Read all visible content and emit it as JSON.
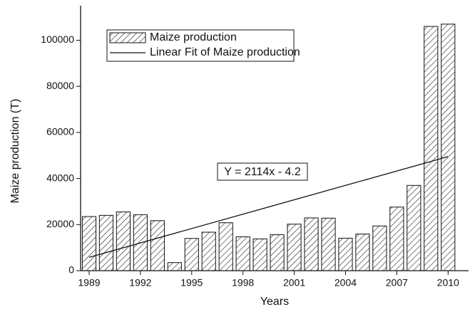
{
  "chart_data": {
    "type": "bar",
    "x_label": "Years",
    "y_label": "Maize production (T)",
    "x": [
      1989,
      1990,
      1991,
      1992,
      1993,
      1994,
      1995,
      1996,
      1997,
      1998,
      1999,
      2000,
      2001,
      2002,
      2003,
      2004,
      2005,
      2006,
      2007,
      2008,
      2009,
      2010
    ],
    "series": [
      {
        "name": "Maize production",
        "type": "bar",
        "color": "#111111",
        "values": [
          23500,
          24000,
          25500,
          24300,
          21700,
          3500,
          14000,
          16700,
          20800,
          14700,
          13800,
          15600,
          20200,
          22900,
          22800,
          14100,
          15900,
          19400,
          27600,
          37000,
          106000,
          107000
        ]
      },
      {
        "name": "Linear Fit of Maize production",
        "type": "line",
        "color": "#111111",
        "x": [
          1989,
          2010
        ],
        "values": [
          5800,
          49500
        ]
      }
    ],
    "annotation": "Y = 2114x - 4.2",
    "xlim": [
      1988.5,
      2011.2
    ],
    "ylim": [
      0,
      115000
    ],
    "xticks": [
      1989,
      1992,
      1995,
      1998,
      2001,
      2004,
      2007,
      2010
    ],
    "yticks": [
      0,
      20000,
      40000,
      60000,
      80000,
      100000
    ],
    "legend": "upper left"
  }
}
